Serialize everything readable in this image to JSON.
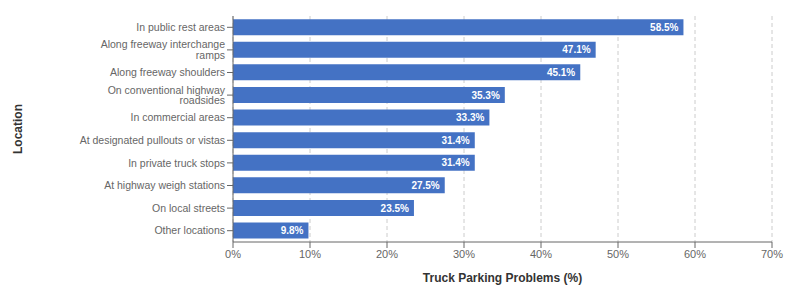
{
  "chart_data": {
    "type": "bar",
    "orientation": "horizontal",
    "categories": [
      "Other locations",
      "On local streets",
      "At highway weigh stations",
      "In private truck stops",
      "At designated pullouts or vistas",
      "In commercial areas",
      "On conventional highway roadsides",
      "Along freeway shoulders",
      "Along freeway interchange ramps",
      "In public rest areas"
    ],
    "values": [
      9.8,
      23.5,
      27.5,
      31.4,
      31.4,
      33.3,
      35.3,
      45.1,
      47.1,
      58.5
    ],
    "value_labels": [
      "9.8%",
      "23.5%",
      "27.5%",
      "31.4%",
      "31.4%",
      "33.3%",
      "35.3%",
      "45.1%",
      "47.1%",
      "58.5%"
    ],
    "data_labels": true,
    "color": "#4472C4",
    "xlabel": "Truck Parking Problems (%)",
    "ylabel": "Location",
    "xlim": [
      0,
      70
    ],
    "xticks": [
      {
        "value": 0,
        "label": "0%"
      },
      {
        "value": 10,
        "label": "10%"
      },
      {
        "value": 20,
        "label": "20%"
      },
      {
        "value": 30,
        "label": "30%"
      },
      {
        "value": 40,
        "label": "40%"
      },
      {
        "value": 50,
        "label": "50%"
      },
      {
        "value": 60,
        "label": "60%"
      },
      {
        "value": 70,
        "label": "70%"
      }
    ],
    "grid": true
  }
}
